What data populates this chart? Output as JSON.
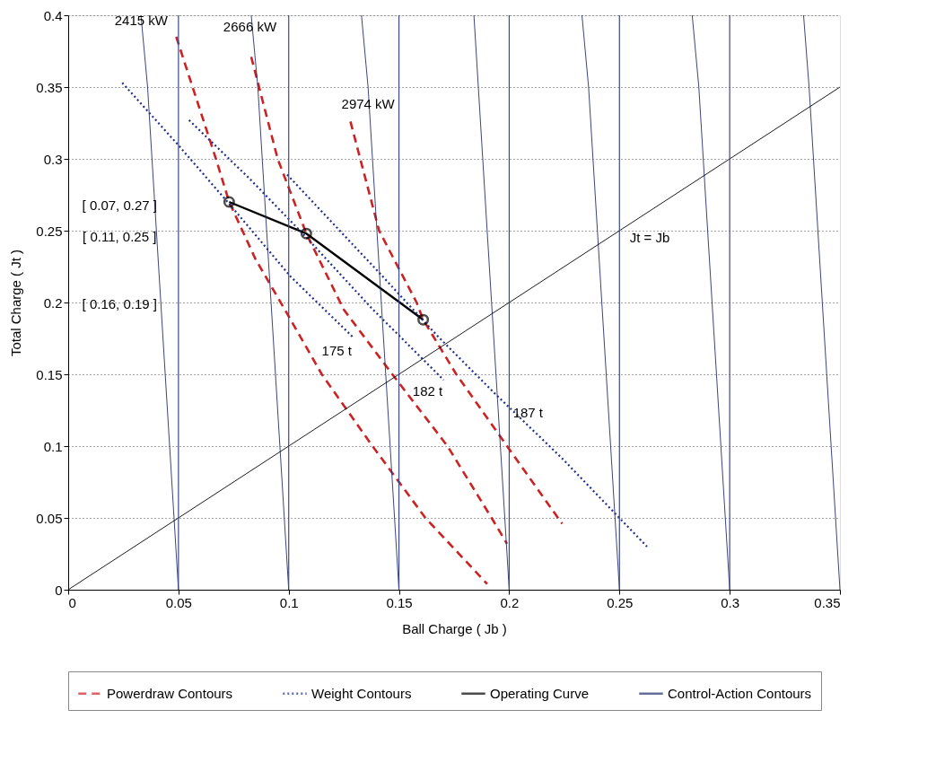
{
  "chart_data": {
    "type": "line",
    "xlabel": "Ball Charge ( Jb )",
    "ylabel": "Total Charge ( Jt )",
    "xlim": [
      0,
      0.35
    ],
    "ylim": [
      0,
      0.4
    ],
    "xticks": [
      0,
      0.05,
      0.1,
      0.15,
      0.2,
      0.25,
      0.3,
      0.35
    ],
    "yticks": [
      0,
      0.05,
      0.1,
      0.15,
      0.2,
      0.25,
      0.3,
      0.35,
      0.4
    ],
    "grid": "y",
    "legend": "bottom",
    "series": [
      {
        "name": "Powerdraw Contours",
        "color": "#cc2222",
        "line_style": "dashed",
        "x": [
          0.049,
          0.067,
          0.073,
          0.085,
          0.099,
          0.115,
          0.138,
          0.162,
          0.19
        ],
        "values": [
          0.385,
          0.3,
          0.27,
          0.23,
          0.193,
          0.15,
          0.1,
          0.05,
          0.004
        ]
      },
      {
        "color": "#cc2222",
        "line_style": "dashed",
        "x": [
          0.083,
          0.095,
          0.108,
          0.125,
          0.147,
          0.172,
          0.192,
          0.199
        ],
        "values": [
          0.371,
          0.3,
          0.248,
          0.195,
          0.15,
          0.1,
          0.05,
          0.032
        ]
      },
      {
        "color": "#cc2222",
        "line_style": "dashed",
        "x": [
          0.128,
          0.141,
          0.158,
          0.161,
          0.176,
          0.199,
          0.224
        ],
        "values": [
          0.326,
          0.25,
          0.2,
          0.188,
          0.15,
          0.1,
          0.046
        ]
      },
      {
        "name": "Weight Contours",
        "color": "#1f2e8a",
        "line_style": "dotted",
        "x": [
          0.0245,
          0.0497,
          0.0745,
          0.1009,
          0.1297
        ],
        "values": [
          0.353,
          0.31,
          0.266,
          0.218,
          0.175
        ]
      },
      {
        "color": "#1f2e8a",
        "line_style": "dotted",
        "x": [
          0.0548,
          0.0824,
          0.1076,
          0.1376,
          0.1703
        ],
        "values": [
          0.327,
          0.286,
          0.246,
          0.196,
          0.146
        ]
      },
      {
        "color": "#1f2e8a",
        "line_style": "dotted",
        "x": [
          0.0993,
          0.1415,
          0.1679,
          0.1939,
          0.2243,
          0.2625
        ],
        "values": [
          0.289,
          0.22,
          0.176,
          0.136,
          0.091,
          0.03
        ]
      },
      {
        "name": "Operating Curve",
        "color": "#000000",
        "line_style": "solid",
        "marker": "circle",
        "x": [
          0.073,
          0.108,
          0.161
        ],
        "values": [
          0.27,
          0.248,
          0.188
        ]
      },
      {
        "name": "Control-Action Contours",
        "color": "#27306e",
        "line_style": "solid",
        "x": [
          0.033,
          0.036,
          0.038,
          0.042,
          0.046,
          0.05
        ],
        "values": [
          0.4,
          0.35,
          0.3,
          0.2,
          0.1,
          0
        ]
      },
      {
        "color": "#27306e",
        "line_style": "solid",
        "x": [
          0.083,
          0.086,
          0.088,
          0.092,
          0.096,
          0.1
        ],
        "values": [
          0.4,
          0.35,
          0.3,
          0.2,
          0.1,
          0
        ]
      },
      {
        "color": "#27306e",
        "line_style": "solid",
        "x": [
          0.133,
          0.136,
          0.138,
          0.142,
          0.146,
          0.15
        ],
        "values": [
          0.4,
          0.35,
          0.3,
          0.2,
          0.1,
          0
        ]
      },
      {
        "color": "#27306e",
        "line_style": "solid",
        "x": [
          0.184,
          0.186,
          0.188,
          0.192,
          0.196,
          0.2
        ],
        "values": [
          0.4,
          0.35,
          0.3,
          0.2,
          0.1,
          0
        ]
      },
      {
        "color": "#27306e",
        "line_style": "solid",
        "x": [
          0.233,
          0.236,
          0.238,
          0.242,
          0.246,
          0.25
        ],
        "values": [
          0.4,
          0.35,
          0.3,
          0.2,
          0.1,
          0
        ]
      },
      {
        "color": "#27306e",
        "line_style": "solid",
        "x": [
          0.283,
          0.286,
          0.288,
          0.292,
          0.296,
          0.3
        ],
        "values": [
          0.4,
          0.35,
          0.3,
          0.2,
          0.1,
          0
        ]
      },
      {
        "color": "#27306e",
        "line_style": "solid",
        "x": [
          0.3335,
          0.336,
          0.338,
          0.342,
          0.346,
          0.35
        ],
        "values": [
          0.4,
          0.35,
          0.3,
          0.2,
          0.1,
          0
        ]
      },
      {
        "color": "#000000",
        "line_style": "solid",
        "x": [
          0,
          0.35
        ],
        "values": [
          0,
          0.35
        ]
      }
    ],
    "ref_lines": [
      {
        "axis": "x",
        "value": 0.05,
        "color": "#3c4a8c"
      },
      {
        "axis": "x",
        "value": 0.1,
        "color": "#3c4a8c"
      },
      {
        "axis": "x",
        "value": 0.15,
        "color": "#3c4a8c"
      },
      {
        "axis": "x",
        "value": 0.2,
        "color": "#3c4a8c"
      },
      {
        "axis": "x",
        "value": 0.25,
        "color": "#3c4a8c"
      },
      {
        "axis": "x",
        "value": 0.3,
        "color": "#3c4a8c"
      }
    ],
    "annotations": [
      "2415 kW",
      "2666 kW",
      "2974 kW",
      "175 t",
      "182 t",
      "187 t",
      "Jt = Jb",
      "[ 0.07, 0.27 ]",
      "[ 0.11, 0.25 ]",
      "[ 0.16, 0.19 ]"
    ]
  }
}
